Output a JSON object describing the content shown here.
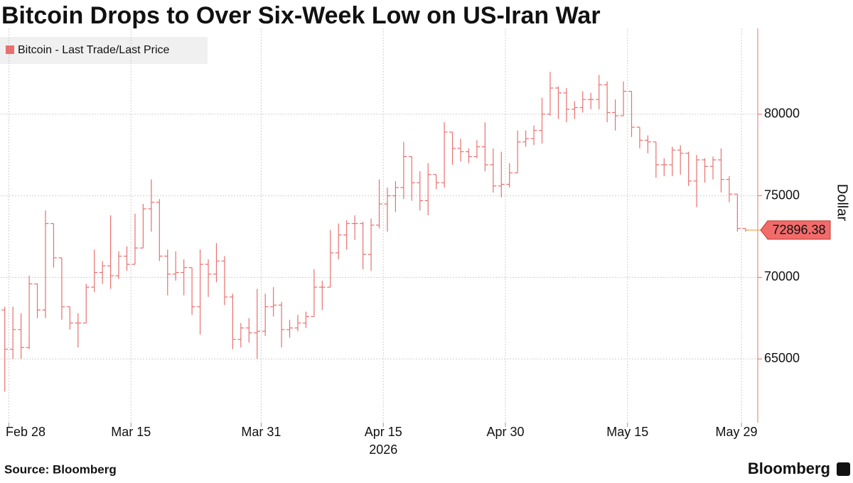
{
  "chart_data": {
    "type": "ohlc",
    "title": "Bitcoin Drops to Over Six-Week Low on US-Iran War",
    "source": "Source: Bloomberg",
    "brand": "Bloomberg",
    "y_axis_label": "Dollar",
    "x_year_label": "2026",
    "grid": true,
    "legend_position": "top-left",
    "xlim": [
      "2026-02-27",
      "2026-05-31"
    ],
    "xticks": [
      {
        "value": "2026-02-28",
        "label": "Feb 28"
      },
      {
        "value": "2026-03-15",
        "label": "Mar 15"
      },
      {
        "value": "2026-03-31",
        "label": "Mar 31"
      },
      {
        "value": "2026-04-15",
        "label": "Apr 15"
      },
      {
        "value": "2026-04-30",
        "label": "Apr 30"
      },
      {
        "value": "2026-05-15",
        "label": "May 15"
      },
      {
        "value": "2026-05-29",
        "label": "May 29"
      }
    ],
    "ylim": [
      61100,
      84600
    ],
    "yticks": [
      65000,
      70000,
      75000,
      80000
    ],
    "x": [
      "2026-02-27",
      "2026-02-28",
      "2026-03-01",
      "2026-03-02",
      "2026-03-03",
      "2026-03-04",
      "2026-03-05",
      "2026-03-06",
      "2026-03-07",
      "2026-03-08",
      "2026-03-09",
      "2026-03-10",
      "2026-03-11",
      "2026-03-12",
      "2026-03-13",
      "2026-03-14",
      "2026-03-15",
      "2026-03-16",
      "2026-03-17",
      "2026-03-18",
      "2026-03-19",
      "2026-03-20",
      "2026-03-21",
      "2026-03-22",
      "2026-03-23",
      "2026-03-24",
      "2026-03-25",
      "2026-03-26",
      "2026-03-27",
      "2026-03-28",
      "2026-03-29",
      "2026-03-30",
      "2026-03-31",
      "2026-04-01",
      "2026-04-02",
      "2026-04-03",
      "2026-04-04",
      "2026-04-05",
      "2026-04-06",
      "2026-04-07",
      "2026-04-08",
      "2026-04-09",
      "2026-04-10",
      "2026-04-11",
      "2026-04-12",
      "2026-04-13",
      "2026-04-14",
      "2026-04-15",
      "2026-04-16",
      "2026-04-17",
      "2026-04-18",
      "2026-04-19",
      "2026-04-20",
      "2026-04-21",
      "2026-04-22",
      "2026-04-23",
      "2026-04-24",
      "2026-04-25",
      "2026-04-26",
      "2026-04-27",
      "2026-04-28",
      "2026-04-29",
      "2026-04-30",
      "2026-05-01",
      "2026-05-02",
      "2026-05-03",
      "2026-05-04",
      "2026-05-05",
      "2026-05-06",
      "2026-05-07",
      "2026-05-08",
      "2026-05-09",
      "2026-05-10",
      "2026-05-11",
      "2026-05-12",
      "2026-05-13",
      "2026-05-14",
      "2026-05-15",
      "2026-05-16",
      "2026-05-17",
      "2026-05-18",
      "2026-05-19",
      "2026-05-20",
      "2026-05-21",
      "2026-05-22",
      "2026-05-23",
      "2026-05-24",
      "2026-05-25",
      "2026-05-26",
      "2026-05-27",
      "2026-05-28",
      "2026-05-29"
    ],
    "series": [
      {
        "name": "Bitcoin - Last Trade/Last Price",
        "color": "#e8706f",
        "open": [
          68000,
          65600,
          66800,
          65700,
          69600,
          68000,
          73300,
          71200,
          68200,
          67200,
          67200,
          69400,
          70300,
          70700,
          70100,
          71300,
          70800,
          71800,
          74200,
          74600,
          71300,
          70200,
          70300,
          70600,
          68200,
          70800,
          70200,
          71000,
          68800,
          66200,
          66900,
          66600,
          66700,
          68200,
          68300,
          66800,
          66900,
          67200,
          67600,
          69400,
          69400,
          71500,
          72600,
          73300,
          73300,
          71400,
          73200,
          74500,
          75000,
          75500,
          77400,
          75800,
          74700,
          76300,
          75800,
          78900,
          77900,
          77700,
          77400,
          78000,
          76900,
          75600,
          75700,
          76400,
          78300,
          78500,
          79000,
          80000,
          81600,
          81300,
          80300,
          80400,
          80900,
          80900,
          81800,
          80100,
          79900,
          81400,
          79200,
          78400,
          78300,
          76900,
          76900,
          77800,
          77600,
          75900,
          77200,
          76800,
          77200,
          76000,
          75100,
          73000
        ],
        "high": [
          68200,
          68200,
          67800,
          70100,
          69600,
          74100,
          73300,
          71200,
          68200,
          67800,
          69600,
          71700,
          71000,
          73800,
          71600,
          71900,
          73900,
          74500,
          76000,
          74800,
          71700,
          71600,
          71100,
          70600,
          71700,
          71100,
          72100,
          71300,
          69000,
          67200,
          67500,
          69300,
          69000,
          69400,
          68500,
          67400,
          67700,
          67900,
          70500,
          69800,
          72900,
          73300,
          73500,
          73800,
          73400,
          73600,
          76000,
          75500,
          75900,
          78300,
          77400,
          76500,
          77000,
          76300,
          79500,
          78900,
          78500,
          77900,
          78400,
          79500,
          77900,
          77700,
          77000,
          79000,
          79000,
          79300,
          81000,
          82600,
          81700,
          81600,
          80800,
          81400,
          81300,
          82400,
          82000,
          80900,
          82000,
          81400,
          79200,
          78700,
          78300,
          77300,
          78000,
          78100,
          77700,
          77500,
          77300,
          77400,
          77900,
          76200,
          75100,
          73000
        ],
        "low": [
          63000,
          65000,
          65000,
          65600,
          67500,
          67500,
          70600,
          67400,
          66800,
          65700,
          67200,
          69100,
          69600,
          69300,
          69900,
          70400,
          70800,
          71800,
          72800,
          71000,
          68900,
          69800,
          68900,
          67700,
          66500,
          68800,
          69700,
          68300,
          65600,
          65700,
          66000,
          65000,
          66400,
          67600,
          65700,
          66300,
          66700,
          66900,
          67600,
          68000,
          69400,
          71100,
          71700,
          72300,
          70500,
          70400,
          73000,
          72800,
          74000,
          74800,
          74700,
          74100,
          73800,
          75400,
          75500,
          76900,
          77100,
          77000,
          77300,
          76500,
          75200,
          74900,
          75500,
          76400,
          78000,
          78100,
          78200,
          79900,
          79700,
          79500,
          79700,
          80100,
          80300,
          80300,
          79500,
          79000,
          79900,
          78600,
          77900,
          77600,
          76100,
          76200,
          76200,
          76300,
          75600,
          74300,
          75800,
          76000,
          75200,
          74600,
          72800,
          72800
        ],
        "close": [
          65600,
          66800,
          65700,
          69600,
          68000,
          73300,
          71200,
          68200,
          67200,
          67200,
          69400,
          70300,
          70700,
          70100,
          71300,
          70800,
          71800,
          74200,
          74600,
          71300,
          70200,
          70300,
          70600,
          68200,
          70800,
          70200,
          71000,
          68800,
          66200,
          66900,
          66600,
          66700,
          68200,
          68300,
          66800,
          66900,
          67200,
          67600,
          69400,
          69400,
          71500,
          72600,
          73300,
          73300,
          71400,
          73200,
          74500,
          75000,
          75500,
          77400,
          75800,
          74700,
          76300,
          75800,
          78900,
          77900,
          77700,
          77400,
          78000,
          76900,
          75600,
          75700,
          76400,
          78300,
          78500,
          79000,
          80000,
          81600,
          81300,
          80300,
          80400,
          80900,
          80900,
          81800,
          80100,
          79900,
          81400,
          79200,
          78400,
          78300,
          76900,
          76900,
          77800,
          77600,
          75900,
          77200,
          76800,
          77200,
          76000,
          75100,
          73000,
          72896.38
        ]
      }
    ]
  }
}
